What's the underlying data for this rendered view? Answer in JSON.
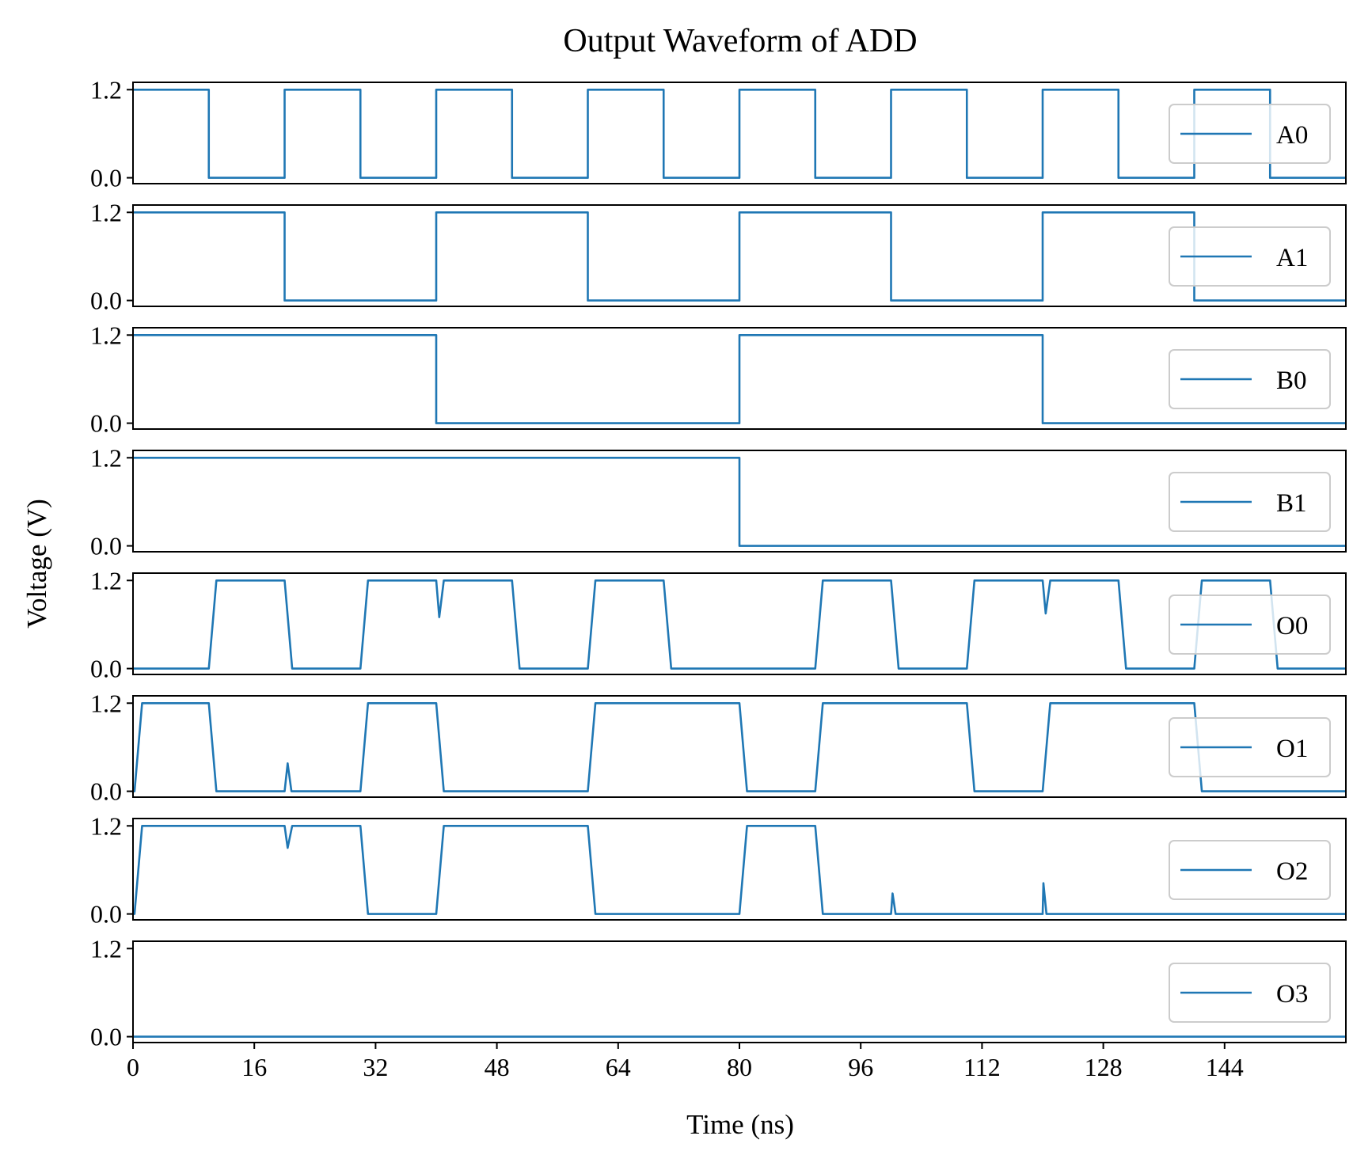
{
  "chart_data": {
    "type": "line",
    "title": "Output Waveform of ADD",
    "xlabel": "Time (ns)",
    "ylabel": "Voltage (V)",
    "xlim": [
      0,
      160
    ],
    "ylim": [
      -0.08,
      1.3
    ],
    "x_ticks": [
      "0",
      "16",
      "32",
      "48",
      "64",
      "80",
      "96",
      "112",
      "128",
      "144"
    ],
    "y_ticks": [
      "0.0",
      "1.2"
    ],
    "grid": false,
    "legend_position": "right",
    "line_color": "#1f77b4",
    "series": [
      {
        "name": "A0",
        "x": [
          0,
          10,
          10,
          20,
          20,
          30,
          30,
          40,
          40,
          50,
          50,
          60,
          60,
          70,
          70,
          80,
          80,
          90,
          90,
          100,
          100,
          110,
          110,
          120,
          120,
          130,
          130,
          140,
          140,
          150,
          150,
          160
        ],
        "y": [
          1.2,
          1.2,
          0,
          0,
          1.2,
          1.2,
          0,
          0,
          1.2,
          1.2,
          0,
          0,
          1.2,
          1.2,
          0,
          0,
          1.2,
          1.2,
          0,
          0,
          1.2,
          1.2,
          0,
          0,
          1.2,
          1.2,
          0,
          0,
          1.2,
          1.2,
          0,
          0
        ]
      },
      {
        "name": "A1",
        "x": [
          0,
          20,
          20,
          40,
          40,
          60,
          60,
          80,
          80,
          100,
          100,
          120,
          120,
          140,
          140,
          160
        ],
        "y": [
          1.2,
          1.2,
          0,
          0,
          1.2,
          1.2,
          0,
          0,
          1.2,
          1.2,
          0,
          0,
          1.2,
          1.2,
          0,
          0
        ]
      },
      {
        "name": "B0",
        "x": [
          0,
          40,
          40,
          80,
          80,
          120,
          120,
          160
        ],
        "y": [
          1.2,
          1.2,
          0,
          0,
          1.2,
          1.2,
          0,
          0
        ]
      },
      {
        "name": "B1",
        "x": [
          0,
          80,
          80,
          160
        ],
        "y": [
          1.2,
          1.2,
          0,
          0
        ]
      },
      {
        "name": "O0",
        "x": [
          0,
          10,
          11,
          20,
          21,
          30,
          31,
          40,
          40.4,
          41,
          50,
          51,
          60,
          61,
          70,
          71,
          90,
          91,
          100,
          101,
          110,
          111,
          120,
          120.4,
          121,
          130,
          131,
          140,
          141,
          150,
          151,
          160
        ],
        "y": [
          0,
          0,
          1.2,
          1.2,
          0,
          0,
          1.2,
          1.2,
          0.7,
          1.2,
          1.2,
          0,
          0,
          1.2,
          1.2,
          0,
          0,
          1.2,
          1.2,
          0,
          0,
          1.2,
          1.2,
          0.75,
          1.2,
          1.2,
          0,
          0,
          1.2,
          1.2,
          0,
          0
        ]
      },
      {
        "name": "O1",
        "x": [
          0,
          0.2,
          1.2,
          10,
          11,
          20,
          20.4,
          20.9,
          30,
          31,
          40,
          41,
          60,
          61,
          80,
          81,
          90,
          91,
          110,
          111,
          120,
          121,
          140,
          141,
          160
        ],
        "y": [
          0,
          0,
          1.2,
          1.2,
          0,
          0,
          0.38,
          0,
          0,
          1.2,
          1.2,
          0,
          0,
          1.2,
          1.2,
          0,
          0,
          1.2,
          1.2,
          0,
          0,
          1.2,
          1.2,
          0,
          0
        ]
      },
      {
        "name": "O2",
        "x": [
          0,
          0.2,
          1.2,
          20,
          20.4,
          21,
          30,
          31,
          40,
          41,
          60,
          61,
          80,
          81,
          90,
          91,
          100,
          100.2,
          100.6,
          120,
          120.1,
          120.5,
          160
        ],
        "y": [
          0,
          0,
          1.2,
          1.2,
          0.9,
          1.2,
          1.2,
          0,
          0,
          1.2,
          1.2,
          0,
          0,
          1.2,
          1.2,
          0,
          0,
          0.28,
          0,
          0,
          0.42,
          0,
          0
        ]
      },
      {
        "name": "O3",
        "x": [
          0,
          160
        ],
        "y": [
          0,
          0
        ]
      }
    ]
  }
}
